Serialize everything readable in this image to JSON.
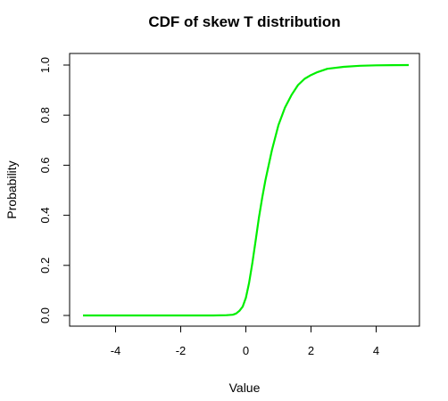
{
  "chart_data": {
    "type": "line",
    "title": "CDF of skew T distribution",
    "xlabel": "Value",
    "ylabel": "Probability",
    "xlim": [
      -5,
      5
    ],
    "ylim": [
      0,
      1
    ],
    "x_ticks": [
      "-4",
      "-2",
      "0",
      "2",
      "4"
    ],
    "y_ticks": [
      "0.0",
      "0.2",
      "0.4",
      "0.6",
      "0.8",
      "1.0"
    ],
    "grid": false,
    "legend": "none",
    "line_color": "#00ee00",
    "series": [
      {
        "x": [
          -5,
          -4,
          -3,
          -2,
          -1,
          -0.6,
          -0.4,
          -0.3,
          -0.2,
          -0.1,
          0,
          0.1,
          0.2,
          0.3,
          0.4,
          0.5,
          0.6,
          0.8,
          1.0,
          1.2,
          1.4,
          1.6,
          1.8,
          2.0,
          2.2,
          2.5,
          3.0,
          3.5,
          4.0,
          4.5,
          5.0
        ],
        "y": [
          0,
          0,
          0,
          0,
          0,
          0.001,
          0.003,
          0.008,
          0.018,
          0.035,
          0.07,
          0.13,
          0.21,
          0.3,
          0.39,
          0.47,
          0.54,
          0.66,
          0.76,
          0.83,
          0.88,
          0.92,
          0.945,
          0.96,
          0.972,
          0.985,
          0.993,
          0.997,
          0.999,
          0.9995,
          1.0
        ]
      }
    ]
  }
}
